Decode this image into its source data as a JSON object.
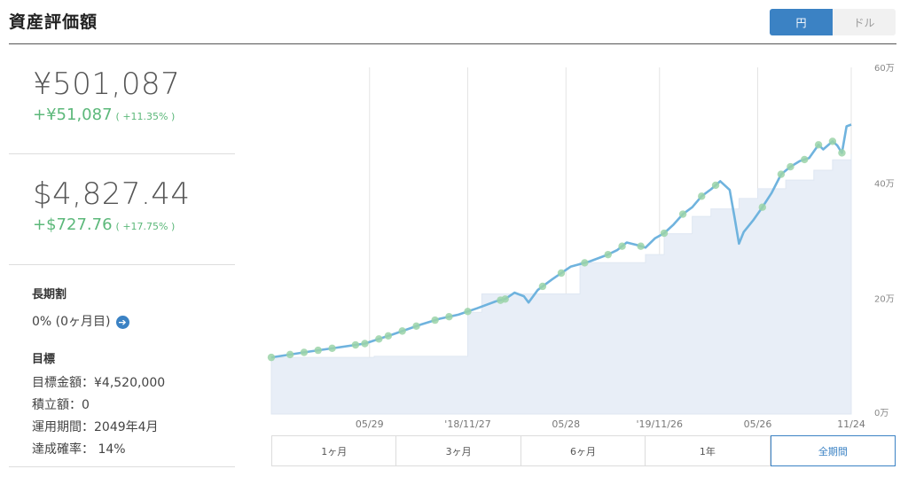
{
  "header": {
    "title": "資産評価額",
    "currency_options": [
      "円",
      "ドル"
    ],
    "selected_currency": "円"
  },
  "summary": {
    "yen": {
      "value": "¥501,087",
      "gain": "+¥51,087",
      "gain_pct": "( +11.35% )"
    },
    "usd": {
      "value": "$4,827.44",
      "gain": "+$727.76",
      "gain_pct": "( +17.75% )"
    }
  },
  "long_term_discount": {
    "heading": "長期割",
    "value": "0% (0ヶ月目)"
  },
  "goal": {
    "heading": "目標",
    "rows": [
      "目標金額：¥4,520,000",
      "積立額：0",
      "運用期間：2049年4月",
      "達成確率：  14%"
    ]
  },
  "range_tabs": {
    "items": [
      "1ヶ月",
      "3ヶ月",
      "6ヶ月",
      "1年",
      "全期間"
    ],
    "selected": "全期間"
  },
  "colors": {
    "accent": "#3b82c4",
    "gain": "#5cb87a",
    "line": "#6fb3de",
    "area": "#e8eef7",
    "marker": "#9bd3a8"
  },
  "chart_data": {
    "type": "area",
    "x_tick_labels": [
      "05/29",
      "'18/11/27",
      "05/28",
      "'19/11/26",
      "05/26",
      "11/24"
    ],
    "y_tick_labels": [
      "0万",
      "20万",
      "40万",
      "60万"
    ],
    "ylim": [
      0,
      60
    ],
    "grid": true,
    "series": [
      {
        "values": [
          [
            0,
            9.8
          ],
          [
            8,
            10.8
          ],
          [
            14,
            11.5
          ],
          [
            20,
            12.2
          ],
          [
            26,
            13.8
          ],
          [
            32,
            15.5
          ],
          [
            36,
            16.5
          ],
          [
            40,
            17.2
          ],
          [
            44,
            18.3
          ],
          [
            48,
            19.5
          ],
          [
            50,
            19.9
          ],
          [
            52,
            21.0
          ],
          [
            54,
            20.4
          ],
          [
            55,
            19.3
          ],
          [
            57,
            21.5
          ],
          [
            60,
            23.3
          ],
          [
            64,
            25.5
          ],
          [
            68,
            26.4
          ],
          [
            72,
            27.6
          ],
          [
            74,
            28.4
          ],
          [
            76,
            29.7
          ],
          [
            78,
            29.3
          ],
          [
            80,
            28.8
          ],
          [
            82,
            30.4
          ],
          [
            84,
            31.3
          ],
          [
            86,
            32.8
          ],
          [
            88,
            34.6
          ],
          [
            90,
            35.8
          ],
          [
            92,
            37.7
          ],
          [
            94,
            38.9
          ],
          [
            96,
            40.3
          ],
          [
            98,
            38.8
          ],
          [
            99,
            34.3
          ],
          [
            100,
            29.5
          ],
          [
            101,
            31.5
          ],
          [
            103,
            33.5
          ],
          [
            105,
            35.8
          ],
          [
            107,
            38.3
          ],
          [
            109,
            41.5
          ],
          [
            111,
            42.8
          ],
          [
            113,
            43.8
          ],
          [
            115,
            44.3
          ],
          [
            117,
            46.6
          ],
          [
            118,
            45.8
          ],
          [
            120,
            47.2
          ],
          [
            121,
            46.5
          ],
          [
            122,
            45.2
          ],
          [
            123,
            49.8
          ],
          [
            124,
            50.1
          ]
        ]
      },
      {
        "values": [
          [
            0,
            9.8
          ],
          [
            22,
            10.0
          ],
          [
            42,
            17.6
          ],
          [
            45,
            20.8
          ],
          [
            66,
            26.2
          ],
          [
            80,
            27.6
          ],
          [
            84,
            31.2
          ],
          [
            90,
            34.2
          ],
          [
            94,
            35.5
          ],
          [
            100,
            37.3
          ],
          [
            104,
            39.0
          ],
          [
            110,
            40.5
          ],
          [
            116,
            42.2
          ],
          [
            120,
            44.0
          ],
          [
            124,
            45.0
          ]
        ]
      }
    ],
    "x_range": [
      0,
      124
    ],
    "x_tick_positions": [
      21,
      42,
      63,
      83,
      104,
      124
    ],
    "marker_x": [
      0,
      4,
      7,
      10,
      13,
      18,
      20,
      23,
      25,
      28,
      31,
      35,
      38,
      42,
      49,
      50,
      58,
      62,
      67,
      72,
      75,
      79,
      84,
      88,
      92,
      95,
      105,
      109,
      111,
      114,
      117,
      120,
      122
    ]
  }
}
